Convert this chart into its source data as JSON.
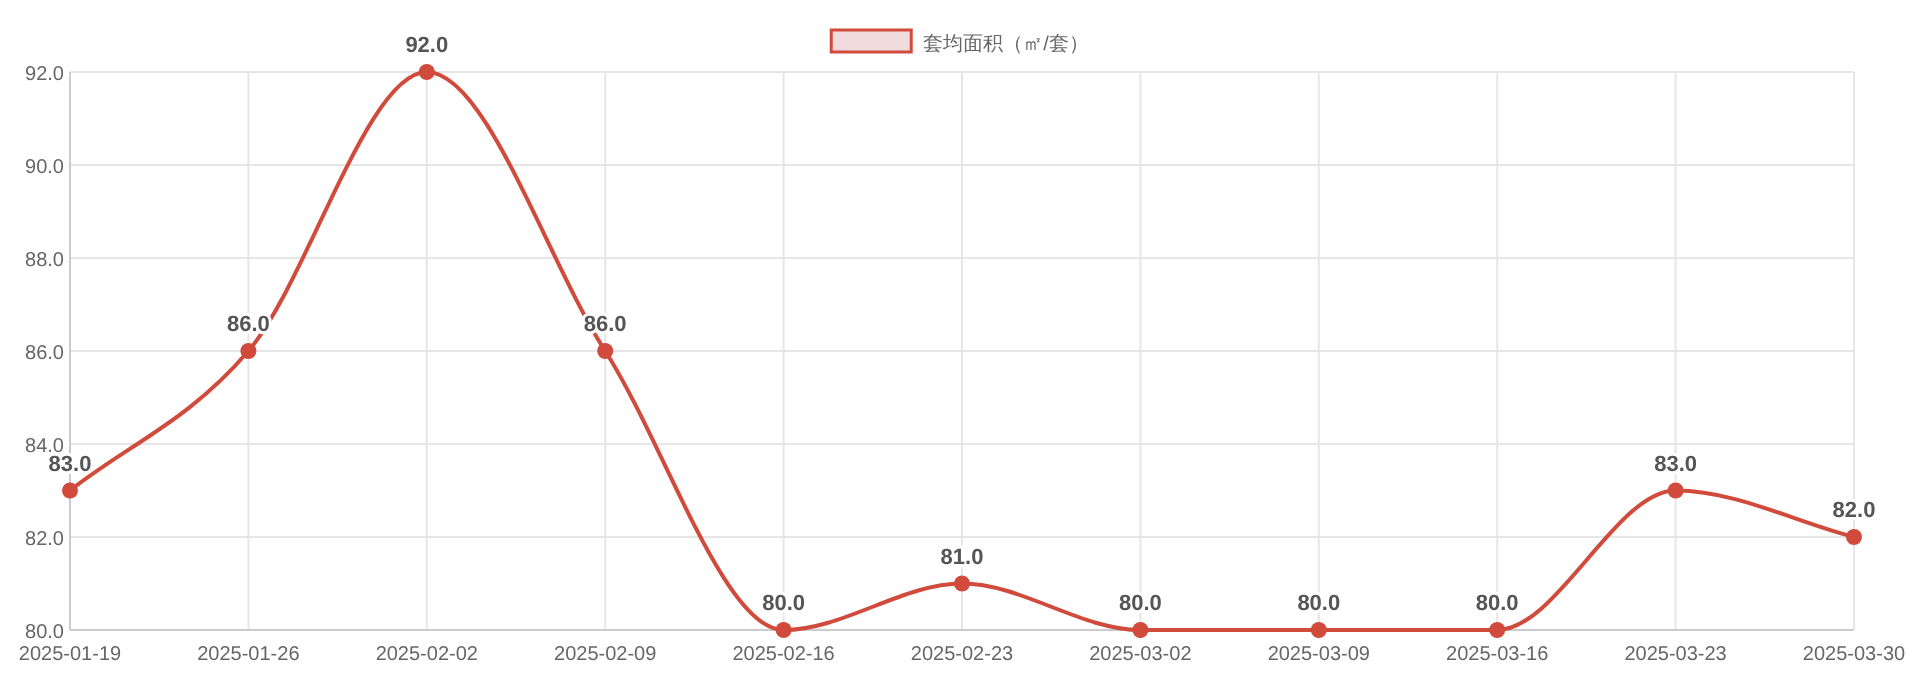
{
  "chart_data": {
    "type": "line",
    "categories": [
      "2025-01-19",
      "2025-01-26",
      "2025-02-02",
      "2025-02-09",
      "2025-02-16",
      "2025-02-23",
      "2025-03-02",
      "2025-03-09",
      "2025-03-16",
      "2025-03-23",
      "2025-03-30"
    ],
    "series": [
      {
        "name": "套均面积（㎡/套）",
        "color": "#d14b3c",
        "values": [
          83,
          86,
          92,
          86,
          80,
          81,
          80,
          80,
          80,
          83,
          82
        ],
        "value_labels": [
          "83.0",
          "86.0",
          "92.0",
          "86.0",
          "80.0",
          "81.0",
          "80.0",
          "80.0",
          "80.0",
          "83.0",
          "82.0"
        ]
      }
    ],
    "ylim": [
      80,
      92
    ],
    "yticks": [
      {
        "value": 80,
        "label": "80.0"
      },
      {
        "value": 82,
        "label": "82.0"
      },
      {
        "value": 84,
        "label": "84.0"
      },
      {
        "value": 86,
        "label": "86.0"
      },
      {
        "value": 88,
        "label": "88.0"
      },
      {
        "value": 90,
        "label": "90.0"
      },
      {
        "value": 92,
        "label": "92.0"
      }
    ],
    "grid": true,
    "legend": "top",
    "marker": "circle",
    "line_style": "solid"
  }
}
